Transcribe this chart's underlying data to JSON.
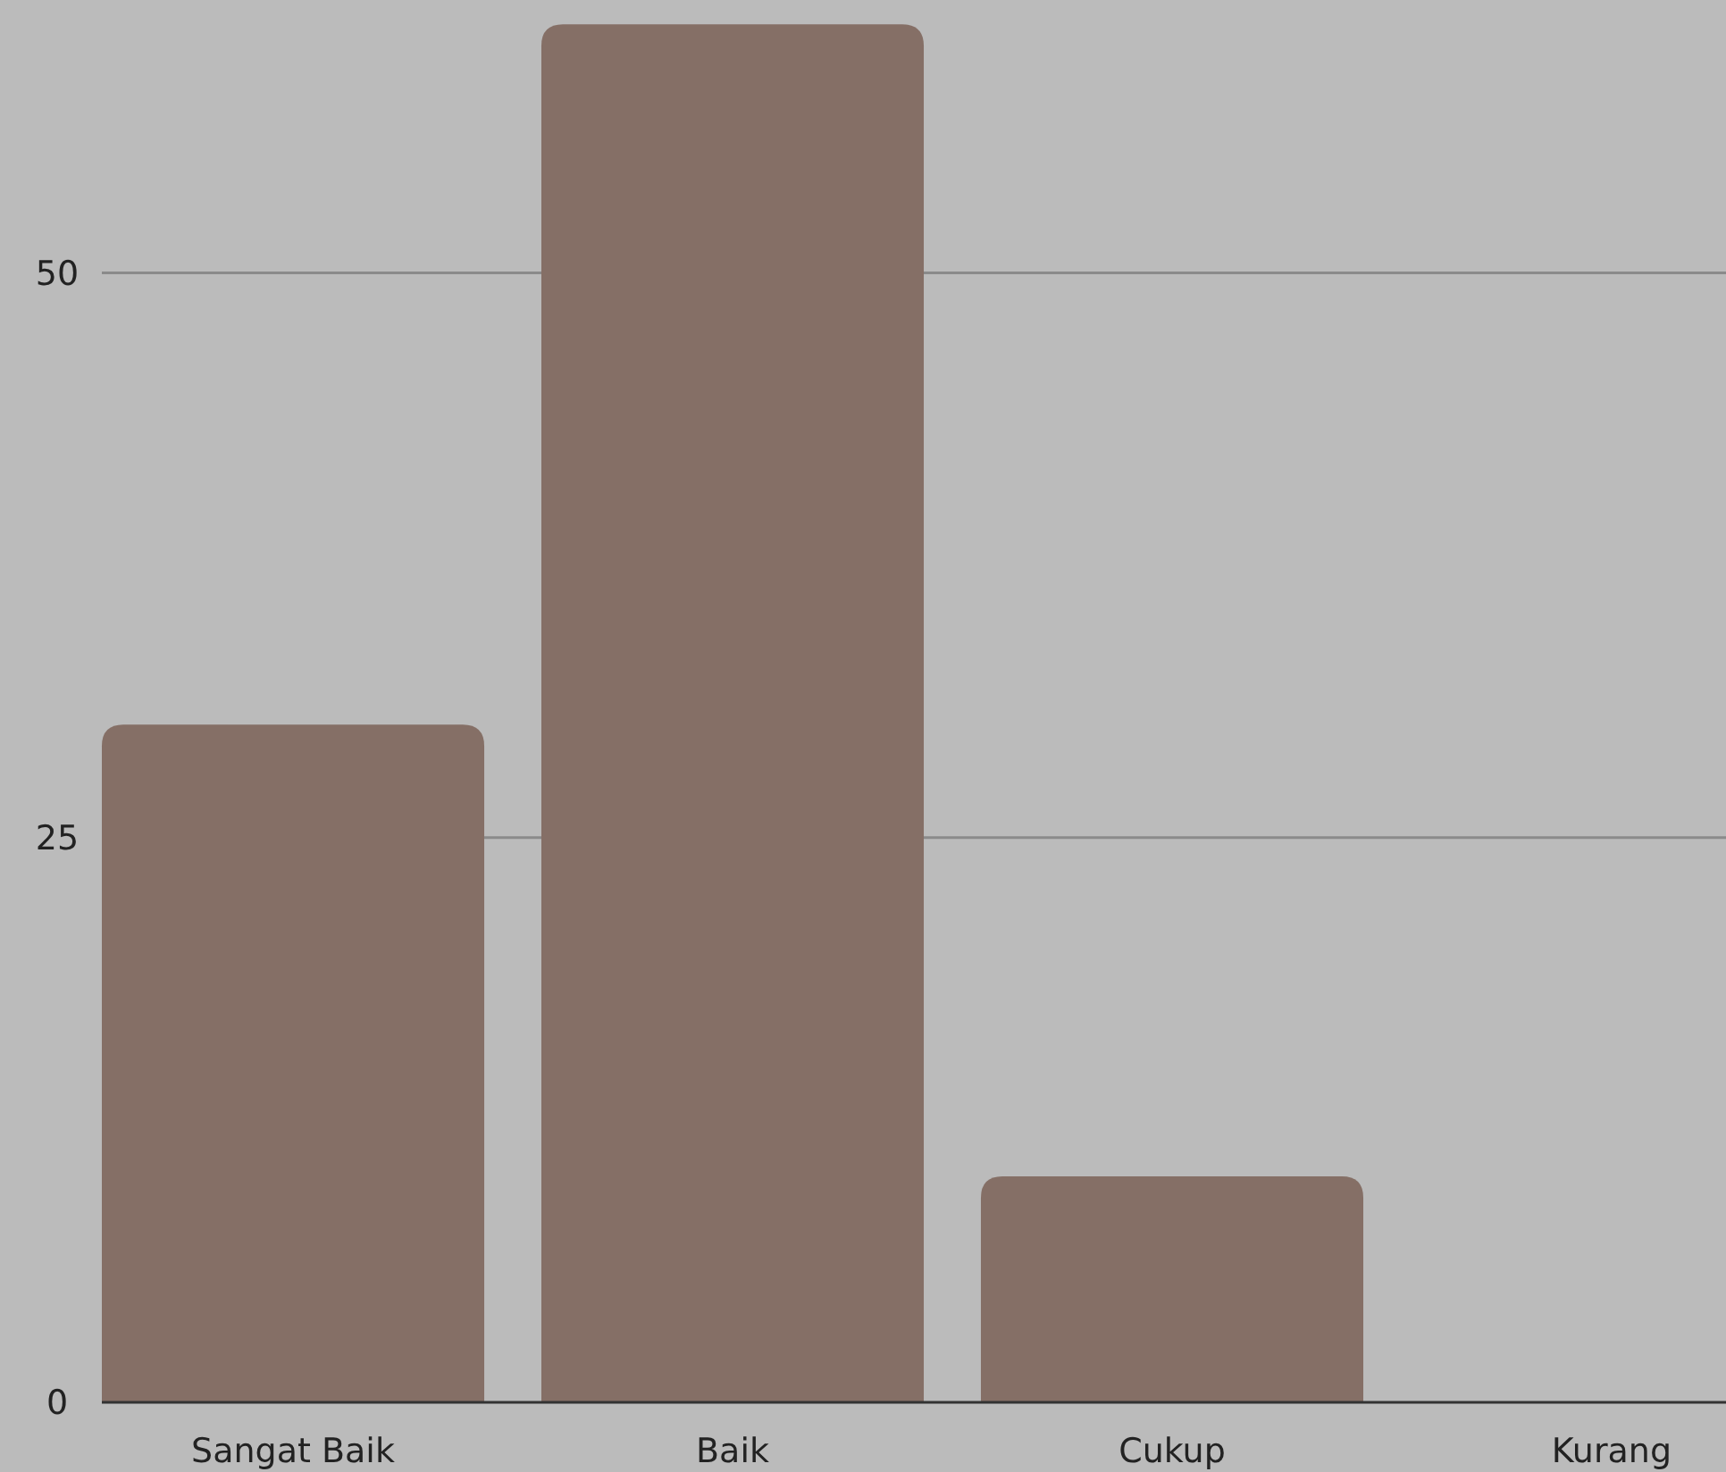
{
  "chart_data": {
    "type": "bar",
    "categories": [
      "Sangat Baik",
      "Baik",
      "Cukup",
      "Kurang"
    ],
    "values": [
      30,
      61,
      10,
      0
    ],
    "color": "#856f66",
    "ylim": [
      0,
      62
    ],
    "yticks": [
      0,
      25,
      50
    ],
    "grid": "y"
  }
}
